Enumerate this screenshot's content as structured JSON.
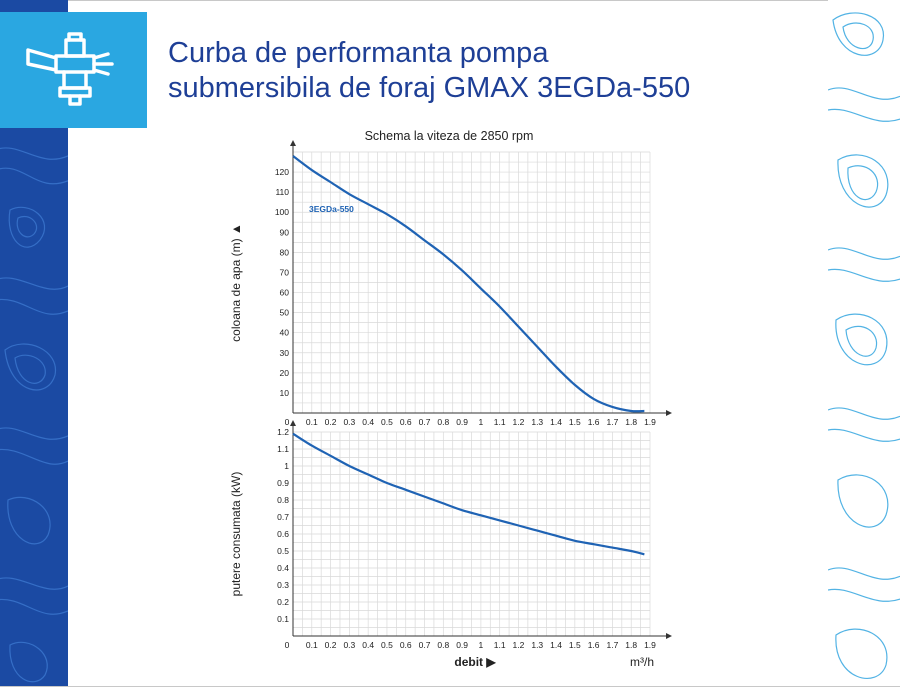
{
  "title_line1": "Curba de performanta pompa",
  "title_line2": "submersibila de foraj GMAX 3EGDa-550",
  "logo_icon": "submersible-pump-icon",
  "colors": {
    "brand": "#1e3f96",
    "accent": "#2aa7e1",
    "band": "#1b4aa3",
    "curve": "#1f63b4"
  },
  "chart_data": [
    {
      "type": "line",
      "title": "Schema la viteza de 2850 rpm",
      "ylabel": "coloana de apa (m) ▲",
      "xlim": [
        0,
        1.9
      ],
      "ylim": [
        0,
        130
      ],
      "xticks": [
        "0",
        "0.1",
        "0.2",
        "0.3",
        "0.4",
        "0.5",
        "0.6",
        "0.7",
        "0.8",
        "0.9",
        "1",
        "1.1",
        "1.2",
        "1.3",
        "1.4",
        "1.5",
        "1.6",
        "1.7",
        "1.8",
        "1.9"
      ],
      "yticks": [
        "10",
        "20",
        "30",
        "40",
        "50",
        "60",
        "70",
        "80",
        "90",
        "100",
        "110",
        "120"
      ],
      "grid": true,
      "series": [
        {
          "name": "3EGDa-550",
          "x": [
            0,
            0.1,
            0.2,
            0.3,
            0.4,
            0.5,
            0.6,
            0.7,
            0.8,
            0.9,
            1.0,
            1.1,
            1.2,
            1.3,
            1.4,
            1.5,
            1.6,
            1.7,
            1.8,
            1.87
          ],
          "y": [
            128,
            121,
            115,
            109,
            104,
            99,
            93,
            86,
            79,
            71,
            62,
            53,
            43,
            33,
            23,
            14,
            7,
            3,
            1,
            1
          ]
        }
      ]
    },
    {
      "type": "line",
      "ylabel": "putere consumata (kW)",
      "xlabel": "debit ▶",
      "xunit": "m³/h",
      "xlim": [
        0,
        1.9
      ],
      "ylim": [
        0,
        1.2
      ],
      "xticks": [
        "0",
        "0.1",
        "0.2",
        "0.3",
        "0.4",
        "0.5",
        "0.6",
        "0.7",
        "0.8",
        "0.9",
        "1",
        "1.1",
        "1.2",
        "1.3",
        "1.4",
        "1.5",
        "1.6",
        "1.7",
        "1.8",
        "1.9"
      ],
      "yticks": [
        "0.1",
        "0.2",
        "0.3",
        "0.4",
        "0.5",
        "0.6",
        "0.7",
        "0.8",
        "0.9",
        "1",
        "1.1",
        "1.2"
      ],
      "grid": true,
      "series": [
        {
          "x": [
            0,
            0.1,
            0.2,
            0.3,
            0.4,
            0.5,
            0.6,
            0.7,
            0.8,
            0.9,
            1.0,
            1.1,
            1.2,
            1.3,
            1.4,
            1.5,
            1.6,
            1.7,
            1.8,
            1.87
          ],
          "y": [
            1.19,
            1.12,
            1.06,
            1.0,
            0.95,
            0.9,
            0.86,
            0.82,
            0.78,
            0.74,
            0.71,
            0.68,
            0.65,
            0.62,
            0.59,
            0.56,
            0.54,
            0.52,
            0.5,
            0.48
          ]
        }
      ]
    }
  ]
}
